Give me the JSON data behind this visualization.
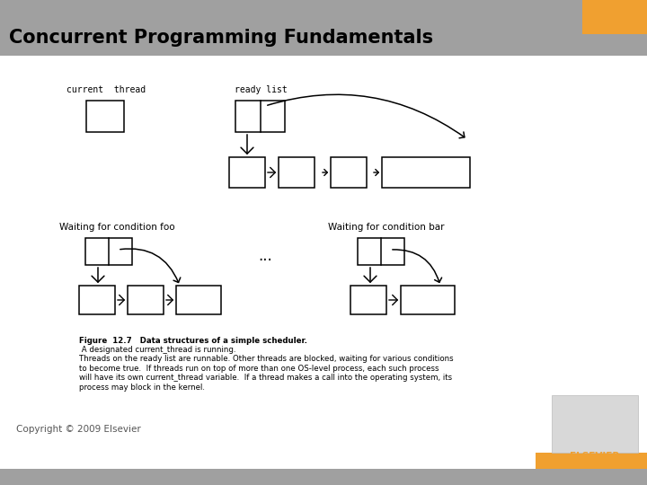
{
  "title": "Concurrent Programming Fundamentals",
  "title_bg_color": "#a0a0a0",
  "title_text_color": "#000000",
  "orange_rect_color": "#f0a030",
  "bottom_bar_color": "#a0a0a0",
  "bg_color": "#ffffff",
  "copyright_text": "Copyright © 2009 Elsevier",
  "fig_label": "Figure  12.7",
  "fig_caption_bold": "Data structures of a simple scheduler.",
  "fig_caption_rest": " A designated current_thread is running.\nThreads on the ready list are runnable. Other threads are blocked, waiting for various conditions\nto become true.  If threads run on top of more than one OS-level process, each such process\nwill have its own current_thread variable.  If a thread makes a call into the operating system, its\nprocess may block in the kernel.",
  "label_current_thread": "current  thread",
  "label_ready_list": "ready list",
  "label_waiting_foo": "Waiting for condition foo",
  "label_waiting_bar": "Waiting for condition bar",
  "dots": "...",
  "box_color": "#000000",
  "arrow_color": "#000000"
}
